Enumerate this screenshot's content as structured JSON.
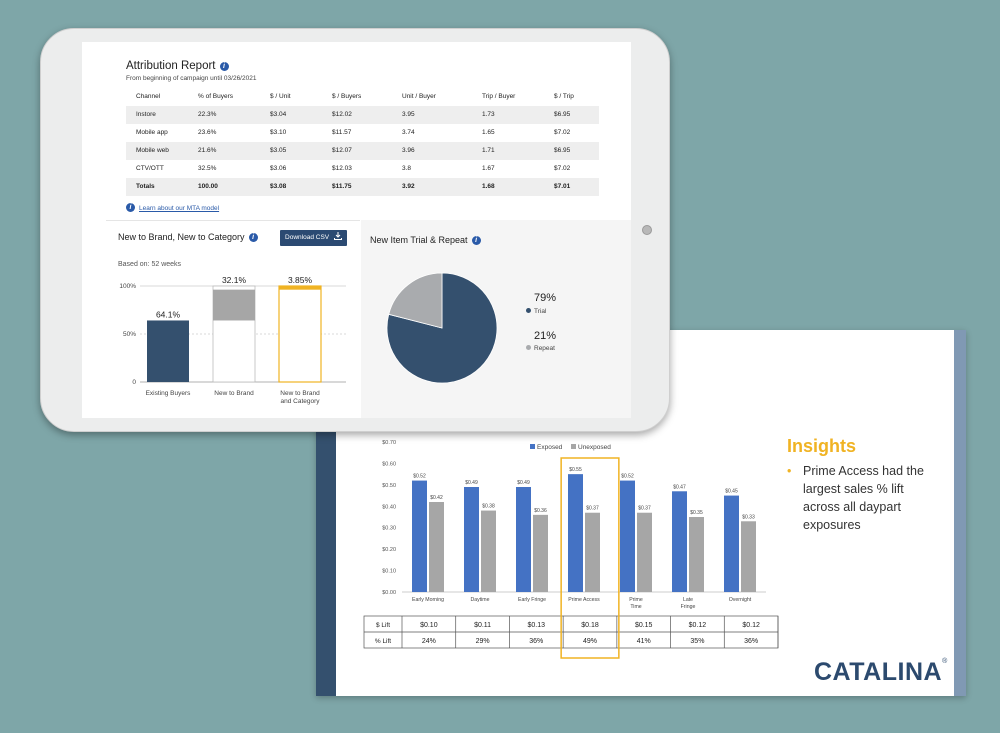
{
  "slide": {
    "insights_title": "Insights",
    "insights_bullet": "•",
    "insights_text": "Prime Access had the largest sales % lift across all daypart exposures",
    "logo": "CATALINA",
    "logo_mark": "®"
  },
  "tablet": {
    "attribution": {
      "title": "Attribution Report",
      "subtitle": "From beginning of campaign until 03/26/2021",
      "columns": [
        "Channel",
        "% of Buyers",
        "$ / Unit",
        "$ / Buyers",
        "Unit / Buyer",
        "Trip / Buyer",
        "$ / Trip"
      ],
      "rows": [
        [
          "Instore",
          "22.3%",
          "$3.04",
          "$12.02",
          "3.95",
          "1.73",
          "$6.95"
        ],
        [
          "Mobile app",
          "23.6%",
          "$3.10",
          "$11.57",
          "3.74",
          "1.65",
          "$7.02"
        ],
        [
          "Mobile web",
          "21.6%",
          "$3.05",
          "$12.07",
          "3.96",
          "1.71",
          "$6.95"
        ],
        [
          "CTV/OTT",
          "32.5%",
          "$3.06",
          "$12.03",
          "3.8",
          "1.67",
          "$7.02"
        ],
        [
          "Totals",
          "100.00",
          "$3.08",
          "$11.75",
          "3.92",
          "1.68",
          "$7.01"
        ]
      ],
      "link": "Learn about our MTA model"
    },
    "ntb": {
      "title": "New to Brand, New to Category",
      "download_label": "Download CSV",
      "download_icon": "download-icon",
      "based_on": "Based on: 52 weeks"
    },
    "nit": {
      "title": "New Item Trial & Repeat"
    },
    "info_icon": "i"
  },
  "colors": {
    "navy": "#34506e",
    "blue_bar": "#4472c4",
    "gray_bar": "#a6a6a6",
    "gold": "#f0b323",
    "pie_gray": "#a9abae"
  },
  "chart_data": [
    {
      "type": "bar",
      "title": "New to Brand, New to Category",
      "categories": [
        "Existing Buyers",
        "New to Brand",
        "New to Brand and Category"
      ],
      "values": [
        64.1,
        32.1,
        3.85
      ],
      "value_labels": [
        "64.1%",
        "32.1%",
        "3.85%"
      ],
      "stacked_base": [
        0,
        64.1,
        96.15
      ],
      "ylim": [
        0,
        100
      ],
      "yticks": [
        0,
        50,
        100
      ],
      "ytick_labels": [
        "0",
        "50%",
        "100%"
      ]
    },
    {
      "type": "pie",
      "title": "New Item Trial & Repeat",
      "labels": [
        "Trial",
        "Repeat"
      ],
      "values": [
        79,
        21
      ],
      "value_labels": [
        "79%",
        "21%"
      ]
    },
    {
      "type": "bar",
      "legend": [
        "Exposed",
        "Unexposed"
      ],
      "categories": [
        "Early Morning",
        "Daytime",
        "Early Fringe",
        "Prime Access",
        "Prime Time",
        "Late Fringe",
        "Overnight"
      ],
      "category_lines": [
        [
          "Early Morning"
        ],
        [
          "Daytime"
        ],
        [
          "Early Fringe"
        ],
        [
          "Prime Access"
        ],
        [
          "Prime",
          "Time"
        ],
        [
          "Late",
          "Fringe"
        ],
        [
          "Overnight"
        ]
      ],
      "series": [
        {
          "name": "Exposed",
          "values": [
            0.52,
            0.49,
            0.49,
            0.55,
            0.52,
            0.47,
            0.45
          ],
          "labels": [
            "$0.52",
            "$0.49",
            "$0.49",
            "$0.55",
            "$0.52",
            "$0.47",
            "$0.45"
          ]
        },
        {
          "name": "Unexposed",
          "values": [
            0.42,
            0.38,
            0.36,
            0.37,
            0.37,
            0.35,
            0.33
          ],
          "labels": [
            "$0.42",
            "$0.38",
            "$0.36",
            "$0.37",
            "$0.37",
            "$0.35",
            "$0.33"
          ]
        }
      ],
      "ylim": [
        0,
        0.7
      ],
      "ytick_labels": [
        "$0.00",
        "$0.10",
        "$0.20",
        "$0.30",
        "$0.40",
        "$0.50",
        "$0.60",
        "$0.70"
      ],
      "highlight": "Prime Access",
      "table": {
        "rows": [
          {
            "label": "$ Lift",
            "values": [
              "$0.10",
              "$0.11",
              "$0.13",
              "$0.18",
              "$0.15",
              "$0.12",
              "$0.12"
            ]
          },
          {
            "label": "% Lift",
            "values": [
              "24%",
              "29%",
              "36%",
              "49%",
              "41%",
              "35%",
              "36%"
            ]
          }
        ]
      }
    }
  ]
}
